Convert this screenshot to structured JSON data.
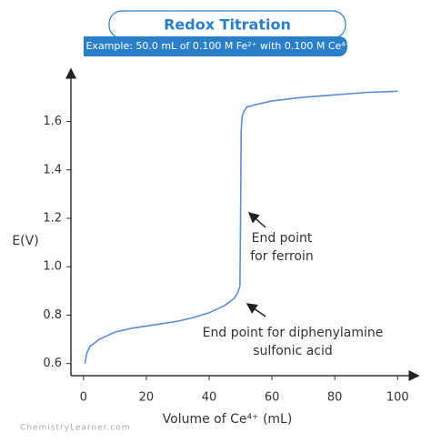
{
  "chart_data": {
    "type": "line",
    "title": "Redox Titration",
    "subtitle": "Example: 50.0 mL of 0.100 M Fe²⁺ with 0.100 M Ce⁴⁺",
    "x_label": "Volume of Ce⁴⁺ (mL)",
    "y_label": "E(V)",
    "x": [
      0.5,
      1,
      2,
      5,
      10,
      15,
      20,
      25,
      30,
      35,
      40,
      45,
      48,
      49,
      49.8,
      50,
      50.2,
      50.5,
      51,
      52,
      55,
      60,
      70,
      80,
      90,
      100
    ],
    "series": [
      {
        "color": "#5b8dd9",
        "values": [
          0.6,
          0.64,
          0.67,
          0.7,
          0.73,
          0.745,
          0.755,
          0.765,
          0.775,
          0.79,
          0.81,
          0.84,
          0.87,
          0.89,
          0.92,
          1.19,
          1.56,
          1.62,
          1.64,
          1.66,
          1.67,
          1.685,
          1.7,
          1.71,
          1.72,
          1.725
        ]
      }
    ],
    "xlim": [
      -4,
      106
    ],
    "ylim": [
      0.55,
      1.82
    ],
    "xticks": [
      0,
      20,
      40,
      60,
      80,
      100
    ],
    "yticks": [
      0.6,
      0.8,
      {
        "value": 1,
        "label": "1.0"
      },
      1.2,
      1.4,
      1.6
    ],
    "annotations": [
      {
        "lines": [
          "End point",
          "for ferroin"
        ]
      },
      {
        "lines": [
          "End point for diphenylamine",
          "sulfonic acid"
        ]
      }
    ],
    "watermark": "ChemistryLearner.com"
  }
}
